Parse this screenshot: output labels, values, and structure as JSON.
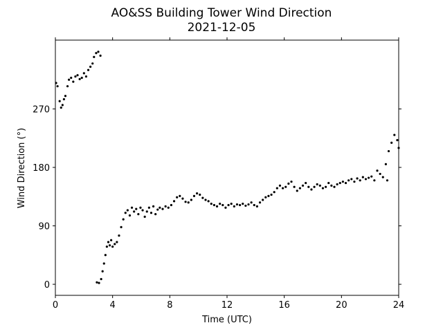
{
  "chart_data": {
    "type": "scatter",
    "title": "AO&SS Building Tower Wind Direction",
    "subtitle": "2021-12-05",
    "xlabel": "Time (UTC)",
    "ylabel": "Wind Direction (°)",
    "color": "#000000",
    "xlim": [
      0,
      24
    ],
    "xticks": [
      0,
      4,
      8,
      12,
      16,
      20,
      24
    ],
    "ylim": [
      -17,
      376
    ],
    "yticks": [
      0,
      90,
      180,
      270
    ],
    "x": [
      0.05,
      0.15,
      0.3,
      0.4,
      0.5,
      0.6,
      0.7,
      0.85,
      0.95,
      1.1,
      1.25,
      1.4,
      1.55,
      1.7,
      1.85,
      2.0,
      2.15,
      2.3,
      2.45,
      2.6,
      2.7,
      2.85,
      3.0,
      3.15,
      2.9,
      3.05,
      3.2,
      3.3,
      3.4,
      3.5,
      3.6,
      3.7,
      3.8,
      3.9,
      4.0,
      4.15,
      4.3,
      4.45,
      4.6,
      4.75,
      4.9,
      5.05,
      5.2,
      5.35,
      5.5,
      5.65,
      5.8,
      5.95,
      6.1,
      6.25,
      6.4,
      6.55,
      6.7,
      6.85,
      7.0,
      7.15,
      7.3,
      7.5,
      7.7,
      7.9,
      8.1,
      8.3,
      8.5,
      8.7,
      8.9,
      9.1,
      9.3,
      9.5,
      9.7,
      9.9,
      10.1,
      10.3,
      10.5,
      10.7,
      10.9,
      11.1,
      11.3,
      11.5,
      11.7,
      11.9,
      12.1,
      12.3,
      12.5,
      12.7,
      12.9,
      13.1,
      13.3,
      13.5,
      13.7,
      13.9,
      14.1,
      14.3,
      14.5,
      14.7,
      14.9,
      15.1,
      15.3,
      15.5,
      15.7,
      15.9,
      16.1,
      16.3,
      16.5,
      16.7,
      16.9,
      17.1,
      17.3,
      17.5,
      17.7,
      17.9,
      18.1,
      18.3,
      18.5,
      18.7,
      18.9,
      19.1,
      19.3,
      19.5,
      19.7,
      19.9,
      20.1,
      20.3,
      20.5,
      20.7,
      20.9,
      21.1,
      21.3,
      21.5,
      21.7,
      21.9,
      22.1,
      22.3,
      22.5,
      22.7,
      22.9,
      23.1,
      23.3,
      23.2,
      23.5,
      23.7,
      23.9,
      24.0
    ],
    "values": [
      310,
      305,
      282,
      272,
      276,
      285,
      290,
      305,
      315,
      318,
      312,
      320,
      322,
      316,
      318,
      325,
      320,
      330,
      335,
      340,
      350,
      356,
      358,
      352,
      3,
      2,
      8,
      20,
      32,
      45,
      58,
      65,
      60,
      68,
      58,
      62,
      65,
      75,
      88,
      100,
      110,
      114,
      106,
      118,
      112,
      116,
      108,
      118,
      114,
      104,
      112,
      118,
      110,
      120,
      108,
      115,
      118,
      116,
      120,
      118,
      122,
      128,
      134,
      136,
      132,
      127,
      126,
      130,
      136,
      140,
      138,
      133,
      130,
      128,
      124,
      122,
      120,
      124,
      122,
      118,
      122,
      124,
      120,
      123,
      122,
      124,
      121,
      123,
      126,
      122,
      120,
      126,
      130,
      134,
      136,
      138,
      142,
      148,
      152,
      148,
      150,
      155,
      158,
      150,
      144,
      148,
      152,
      156,
      150,
      146,
      150,
      154,
      152,
      148,
      150,
      156,
      152,
      150,
      154,
      156,
      158,
      156,
      160,
      162,
      158,
      163,
      160,
      165,
      162,
      164,
      166,
      160,
      175,
      170,
      165,
      185,
      205,
      160,
      218,
      230,
      222,
      210
    ]
  }
}
